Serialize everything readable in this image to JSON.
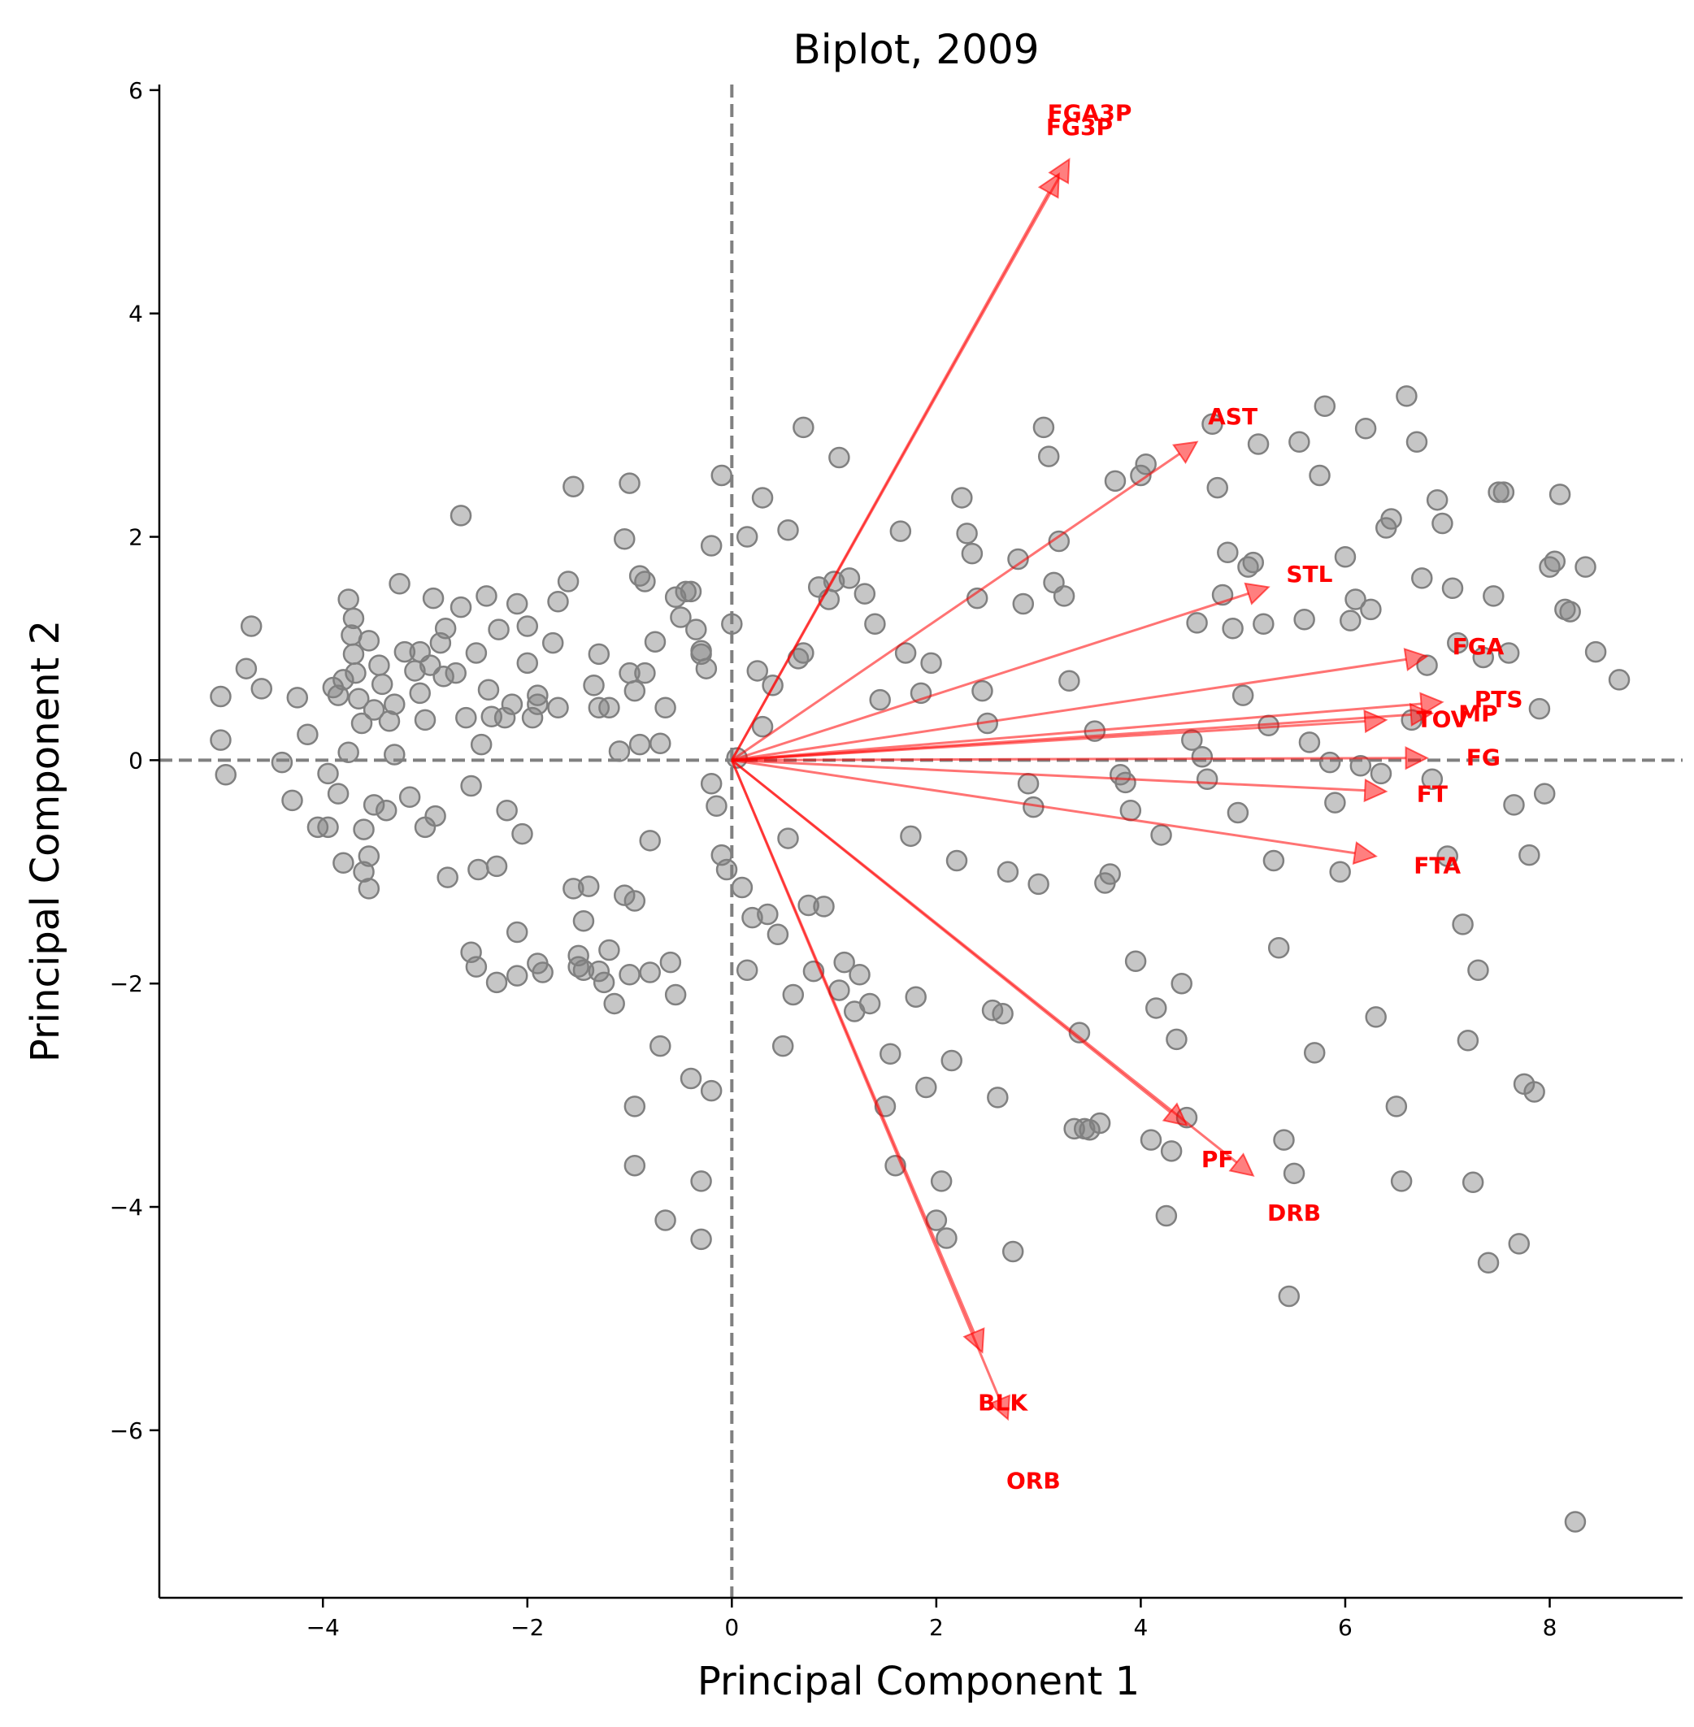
{
  "chart_data": {
    "type": "scatter",
    "title": "Biplot, 2009",
    "xlabel": "Principal Component 1",
    "ylabel": "Principal Component 2",
    "xlim": [
      -5.6,
      9.3
    ],
    "ylim": [
      -7.5,
      6.05
    ],
    "xticks": [
      {
        "value": -4,
        "label": "−4"
      },
      {
        "value": -2,
        "label": "−2"
      },
      {
        "value": 0,
        "label": "0"
      },
      {
        "value": 2,
        "label": "2"
      },
      {
        "value": 4,
        "label": "4"
      },
      {
        "value": 6,
        "label": "6"
      },
      {
        "value": 8,
        "label": "8"
      }
    ],
    "yticks": [
      {
        "value": 6,
        "label": "6"
      },
      {
        "value": 4,
        "label": "4"
      },
      {
        "value": 2,
        "label": "2"
      },
      {
        "value": 0,
        "label": "0"
      },
      {
        "value": -2,
        "label": "−2"
      },
      {
        "value": -4,
        "label": "−4"
      },
      {
        "value": -6,
        "label": "−6"
      }
    ],
    "grid": false,
    "reference_lines": {
      "x": 0,
      "y": 0,
      "style": "dashed",
      "color": "#808080"
    },
    "point_color": "#808080",
    "vector_color": "#ff0000",
    "points": [
      [
        -5.0,
        0.57
      ],
      [
        -5.0,
        0.18
      ],
      [
        -4.95,
        -0.13
      ],
      [
        -4.7,
        1.2
      ],
      [
        -4.75,
        0.82
      ],
      [
        -4.6,
        0.64
      ],
      [
        -4.4,
        -0.02
      ],
      [
        -4.3,
        -0.36
      ],
      [
        -4.25,
        0.56
      ],
      [
        -4.15,
        0.23
      ],
      [
        -4.05,
        -0.6
      ],
      [
        -3.95,
        -0.6
      ],
      [
        -3.95,
        -0.12
      ],
      [
        -3.9,
        0.65
      ],
      [
        -3.85,
        0.58
      ],
      [
        -3.85,
        -0.3
      ],
      [
        -3.8,
        0.72
      ],
      [
        -3.8,
        -0.92
      ],
      [
        -3.75,
        1.44
      ],
      [
        -3.72,
        1.12
      ],
      [
        -3.7,
        1.27
      ],
      [
        -3.7,
        0.95
      ],
      [
        -3.68,
        0.78
      ],
      [
        -3.65,
        0.55
      ],
      [
        -3.62,
        0.33
      ],
      [
        -3.6,
        -0.62
      ],
      [
        -3.55,
        -1.15
      ],
      [
        -3.55,
        -0.86
      ],
      [
        -3.5,
        0.45
      ],
      [
        -3.45,
        0.85
      ],
      [
        -3.42,
        0.68
      ],
      [
        -3.38,
        -0.45
      ],
      [
        -3.35,
        0.35
      ],
      [
        -3.3,
        0.5
      ],
      [
        -3.3,
        0.05
      ],
      [
        -3.25,
        1.58
      ],
      [
        -3.2,
        0.97
      ],
      [
        -3.15,
        -0.33
      ],
      [
        -3.1,
        0.8
      ],
      [
        -3.05,
        0.6
      ],
      [
        -3.0,
        0.36
      ],
      [
        -3.0,
        -0.6
      ],
      [
        -2.95,
        0.85
      ],
      [
        -2.92,
        1.45
      ],
      [
        -2.9,
        -0.5
      ],
      [
        -2.85,
        1.05
      ],
      [
        -2.82,
        0.75
      ],
      [
        -2.78,
        -1.05
      ],
      [
        -2.7,
        0.78
      ],
      [
        -2.65,
        1.37
      ],
      [
        -2.6,
        0.38
      ],
      [
        -2.55,
        -0.23
      ],
      [
        -2.5,
        0.96
      ],
      [
        -2.48,
        -0.98
      ],
      [
        -2.45,
        0.14
      ],
      [
        -2.4,
        1.47
      ],
      [
        -2.38,
        0.63
      ],
      [
        -2.35,
        0.39
      ],
      [
        -2.3,
        -0.95
      ],
      [
        -2.28,
        1.17
      ],
      [
        -2.22,
        0.38
      ],
      [
        -2.2,
        -0.45
      ],
      [
        -2.15,
        0.5
      ],
      [
        -2.1,
        -1.54
      ],
      [
        -2.05,
        -0.66
      ],
      [
        -2.0,
        0.87
      ],
      [
        -1.95,
        0.38
      ],
      [
        -1.9,
        0.58
      ],
      [
        -1.85,
        -1.9
      ],
      [
        -1.75,
        1.05
      ],
      [
        -1.7,
        0.47
      ],
      [
        -1.6,
        1.6
      ],
      [
        -1.55,
        -1.15
      ],
      [
        -1.5,
        -1.85
      ],
      [
        -1.5,
        -1.75
      ],
      [
        -1.45,
        -1.88
      ],
      [
        -1.45,
        -1.44
      ],
      [
        -1.4,
        -1.13
      ],
      [
        -1.35,
        0.67
      ],
      [
        -1.3,
        -1.89
      ],
      [
        -1.3,
        0.47
      ],
      [
        -1.25,
        -1.99
      ],
      [
        -1.2,
        0.47
      ],
      [
        -1.15,
        -2.18
      ],
      [
        -1.1,
        0.08
      ],
      [
        -1.05,
        -1.21
      ],
      [
        -1.0,
        -1.92
      ],
      [
        -0.95,
        -1.26
      ],
      [
        -0.9,
        0.14
      ],
      [
        -0.85,
        1.6
      ],
      [
        -0.8,
        -0.72
      ],
      [
        -0.75,
        1.06
      ],
      [
        -0.7,
        0.15
      ],
      [
        -0.65,
        0.47
      ],
      [
        -0.6,
        -1.81
      ],
      [
        -0.55,
        1.46
      ],
      [
        -0.5,
        1.28
      ],
      [
        -0.45,
        1.51
      ],
      [
        -0.4,
        1.51
      ],
      [
        -0.35,
        1.17
      ],
      [
        -0.3,
        0.98
      ],
      [
        -0.25,
        0.82
      ],
      [
        -0.2,
        -0.21
      ],
      [
        -0.15,
        -0.41
      ],
      [
        -0.1,
        -0.85
      ],
      [
        -0.05,
        -0.98
      ],
      [
        0.0,
        1.22
      ],
      [
        0.05,
        0.02
      ],
      [
        0.1,
        -1.14
      ],
      [
        0.15,
        -1.88
      ],
      [
        0.2,
        -1.41
      ],
      [
        0.25,
        0.8
      ],
      [
        0.3,
        0.3
      ],
      [
        0.35,
        -1.38
      ],
      [
        0.4,
        0.67
      ],
      [
        0.45,
        -1.56
      ],
      [
        0.5,
        -2.56
      ],
      [
        0.55,
        -0.7
      ],
      [
        0.6,
        -2.1
      ],
      [
        0.65,
        0.91
      ],
      [
        0.7,
        0.96
      ],
      [
        0.75,
        -1.3
      ],
      [
        0.8,
        -1.89
      ],
      [
        0.85,
        1.55
      ],
      [
        0.9,
        -1.31
      ],
      [
        0.95,
        1.44
      ],
      [
        1.0,
        1.6
      ],
      [
        1.05,
        -2.06
      ],
      [
        1.1,
        -1.81
      ],
      [
        1.15,
        1.63
      ],
      [
        1.2,
        -2.25
      ],
      [
        1.25,
        -1.92
      ],
      [
        1.3,
        1.49
      ],
      [
        1.35,
        -2.18
      ],
      [
        1.4,
        1.22
      ],
      [
        1.45,
        0.54
      ],
      [
        1.5,
        -3.1
      ],
      [
        1.55,
        -2.63
      ],
      [
        1.6,
        -3.63
      ],
      [
        1.65,
        2.05
      ],
      [
        1.7,
        0.96
      ],
      [
        1.75,
        -0.68
      ],
      [
        1.8,
        -2.12
      ],
      [
        1.85,
        0.6
      ],
      [
        1.9,
        -2.93
      ],
      [
        1.95,
        0.87
      ],
      [
        2.0,
        -4.12
      ],
      [
        2.05,
        -3.77
      ],
      [
        2.1,
        -4.28
      ],
      [
        2.15,
        -2.69
      ],
      [
        2.2,
        -0.9
      ],
      [
        2.25,
        2.35
      ],
      [
        2.3,
        2.03
      ],
      [
        2.35,
        1.85
      ],
      [
        2.4,
        1.45
      ],
      [
        2.45,
        0.62
      ],
      [
        2.5,
        0.33
      ],
      [
        2.55,
        -2.24
      ],
      [
        2.6,
        -3.02
      ],
      [
        2.65,
        -2.27
      ],
      [
        2.7,
        -1.0
      ],
      [
        2.75,
        -4.4
      ],
      [
        2.8,
        1.8
      ],
      [
        2.85,
        1.4
      ],
      [
        2.9,
        -0.21
      ],
      [
        2.95,
        -0.42
      ],
      [
        3.0,
        -1.11
      ],
      [
        3.05,
        2.98
      ],
      [
        3.1,
        2.72
      ],
      [
        3.15,
        1.59
      ],
      [
        3.2,
        1.96
      ],
      [
        3.25,
        1.47
      ],
      [
        3.3,
        0.71
      ],
      [
        3.35,
        -3.3
      ],
      [
        3.4,
        -2.44
      ],
      [
        3.45,
        -3.3
      ],
      [
        3.5,
        -3.31
      ],
      [
        3.55,
        0.26
      ],
      [
        3.6,
        -3.25
      ],
      [
        3.65,
        -1.1
      ],
      [
        3.7,
        -1.02
      ],
      [
        3.75,
        2.5
      ],
      [
        3.8,
        -0.13
      ],
      [
        3.85,
        -0.2
      ],
      [
        3.9,
        -0.45
      ],
      [
        3.95,
        -1.8
      ],
      [
        4.0,
        2.55
      ],
      [
        4.05,
        2.65
      ],
      [
        4.1,
        -3.4
      ],
      [
        4.15,
        -2.22
      ],
      [
        4.2,
        -0.67
      ],
      [
        4.25,
        -4.08
      ],
      [
        4.3,
        -3.5
      ],
      [
        4.35,
        -2.5
      ],
      [
        4.4,
        -2.0
      ],
      [
        4.45,
        -3.2
      ],
      [
        4.5,
        0.18
      ],
      [
        4.55,
        1.23
      ],
      [
        4.6,
        0.03
      ],
      [
        4.65,
        -0.17
      ],
      [
        4.7,
        3.01
      ],
      [
        4.75,
        2.44
      ],
      [
        4.8,
        1.48
      ],
      [
        4.85,
        1.86
      ],
      [
        4.9,
        1.18
      ],
      [
        4.95,
        -0.47
      ],
      [
        5.0,
        0.58
      ],
      [
        5.05,
        1.73
      ],
      [
        5.1,
        1.77
      ],
      [
        5.15,
        2.83
      ],
      [
        5.2,
        1.22
      ],
      [
        5.25,
        0.31
      ],
      [
        5.3,
        -0.9
      ],
      [
        5.35,
        -1.68
      ],
      [
        5.4,
        -3.4
      ],
      [
        5.45,
        -4.8
      ],
      [
        5.5,
        -3.7
      ],
      [
        5.55,
        2.85
      ],
      [
        5.6,
        1.26
      ],
      [
        5.65,
        0.16
      ],
      [
        5.7,
        -2.62
      ],
      [
        5.75,
        2.55
      ],
      [
        5.8,
        3.17
      ],
      [
        5.85,
        -0.02
      ],
      [
        5.9,
        -0.38
      ],
      [
        5.95,
        -1.0
      ],
      [
        6.0,
        1.82
      ],
      [
        6.05,
        1.25
      ],
      [
        6.1,
        1.44
      ],
      [
        6.15,
        -0.05
      ],
      [
        6.2,
        2.97
      ],
      [
        6.25,
        1.35
      ],
      [
        6.3,
        -2.3
      ],
      [
        6.35,
        -0.12
      ],
      [
        6.4,
        2.08
      ],
      [
        6.45,
        2.16
      ],
      [
        6.5,
        -3.1
      ],
      [
        6.55,
        -3.77
      ],
      [
        6.6,
        3.26
      ],
      [
        6.65,
        0.36
      ],
      [
        6.7,
        2.85
      ],
      [
        6.75,
        1.63
      ],
      [
        6.8,
        0.85
      ],
      [
        6.85,
        -0.17
      ],
      [
        6.9,
        2.33
      ],
      [
        6.95,
        2.12
      ],
      [
        7.0,
        -0.86
      ],
      [
        7.05,
        1.54
      ],
      [
        7.1,
        1.05
      ],
      [
        7.15,
        -1.47
      ],
      [
        7.2,
        -2.51
      ],
      [
        7.25,
        -3.78
      ],
      [
        7.3,
        -1.88
      ],
      [
        7.35,
        0.92
      ],
      [
        7.4,
        -4.5
      ],
      [
        7.45,
        1.47
      ],
      [
        7.5,
        2.4
      ],
      [
        7.55,
        2.4
      ],
      [
        7.6,
        0.96
      ],
      [
        7.65,
        -0.4
      ],
      [
        7.7,
        -4.33
      ],
      [
        7.75,
        -2.9
      ],
      [
        7.8,
        -0.85
      ],
      [
        7.85,
        -2.97
      ],
      [
        7.9,
        0.46
      ],
      [
        7.95,
        -0.3
      ],
      [
        8.0,
        1.73
      ],
      [
        8.05,
        1.78
      ],
      [
        8.1,
        2.38
      ],
      [
        8.15,
        1.35
      ],
      [
        8.2,
        1.33
      ],
      [
        8.25,
        -6.82
      ],
      [
        8.35,
        1.73
      ],
      [
        8.45,
        0.97
      ],
      [
        8.68,
        0.72
      ],
      [
        -1.0,
        2.48
      ],
      [
        -1.05,
        1.98
      ],
      [
        -1.55,
        2.45
      ],
      [
        -2.65,
        2.19
      ],
      [
        -0.1,
        2.55
      ],
      [
        0.15,
        2.0
      ],
      [
        0.3,
        2.35
      ],
      [
        0.7,
        2.98
      ],
      [
        1.05,
        2.71
      ],
      [
        0.55,
        2.06
      ],
      [
        -0.2,
        1.92
      ],
      [
        -0.9,
        1.65
      ],
      [
        -1.0,
        0.78
      ],
      [
        -0.85,
        0.78
      ],
      [
        -0.95,
        0.62
      ],
      [
        -0.3,
        0.95
      ],
      [
        -1.3,
        0.95
      ],
      [
        -1.9,
        0.5
      ],
      [
        -2.0,
        1.2
      ],
      [
        -2.1,
        1.4
      ],
      [
        -1.7,
        1.42
      ],
      [
        -2.8,
        1.18
      ],
      [
        -3.05,
        0.97
      ],
      [
        -3.55,
        1.07
      ],
      [
        -3.75,
        0.07
      ],
      [
        -3.5,
        -0.4
      ],
      [
        -3.6,
        -1.0
      ],
      [
        -2.55,
        -1.72
      ],
      [
        -2.5,
        -1.85
      ],
      [
        -2.3,
        -1.99
      ],
      [
        -2.1,
        -1.93
      ],
      [
        -1.9,
        -1.82
      ],
      [
        -1.2,
        -1.7
      ],
      [
        -0.55,
        -2.1
      ],
      [
        -0.95,
        -3.1
      ],
      [
        -0.95,
        -3.63
      ],
      [
        -0.3,
        -3.77
      ],
      [
        -0.3,
        -4.29
      ],
      [
        -0.2,
        -2.96
      ],
      [
        -0.4,
        -2.85
      ],
      [
        -0.65,
        -4.12
      ],
      [
        -0.8,
        -1.9
      ],
      [
        -0.7,
        -2.56
      ]
    ],
    "vectors": [
      {
        "label": "FGA3P",
        "x": 3.3,
        "y": 5.38,
        "label_pos": [
          3.5,
          5.8
        ]
      },
      {
        "label": "FG3P",
        "x": 3.2,
        "y": 5.25,
        "label_pos": [
          3.4,
          5.67
        ]
      },
      {
        "label": "AST",
        "x": 4.55,
        "y": 2.85,
        "label_pos": [
          4.9,
          3.08
        ]
      },
      {
        "label": "STL",
        "x": 5.25,
        "y": 1.55,
        "label_pos": [
          5.65,
          1.67
        ]
      },
      {
        "label": "FGA",
        "x": 6.8,
        "y": 0.93,
        "label_pos": [
          7.3,
          1.02
        ]
      },
      {
        "label": "PTS",
        "x": 6.95,
        "y": 0.52,
        "label_pos": [
          7.5,
          0.55
        ]
      },
      {
        "label": "MP",
        "x": 6.85,
        "y": 0.42,
        "label_pos": [
          7.3,
          0.42
        ]
      },
      {
        "label": "TOV",
        "x": 6.4,
        "y": 0.36,
        "label_pos": [
          6.95,
          0.37
        ]
      },
      {
        "label": "FG",
        "x": 6.8,
        "y": 0.02,
        "label_pos": [
          7.35,
          0.03
        ]
      },
      {
        "label": "FT",
        "x": 6.4,
        "y": -0.28,
        "label_pos": [
          6.85,
          -0.3
        ]
      },
      {
        "label": "FTA",
        "x": 6.3,
        "y": -0.86,
        "label_pos": [
          6.9,
          -0.94
        ]
      },
      {
        "label": "PF",
        "x": 4.45,
        "y": -3.27,
        "label_pos": [
          4.75,
          -3.57
        ]
      },
      {
        "label": "DRB",
        "x": 5.1,
        "y": -3.72,
        "label_pos": [
          5.5,
          -4.05
        ]
      },
      {
        "label": "BLK",
        "x": 2.45,
        "y": -5.3,
        "label_pos": [
          2.65,
          -5.75
        ]
      },
      {
        "label": "ORB",
        "x": 2.7,
        "y": -5.9,
        "label_pos": [
          2.95,
          -6.45
        ]
      }
    ]
  }
}
